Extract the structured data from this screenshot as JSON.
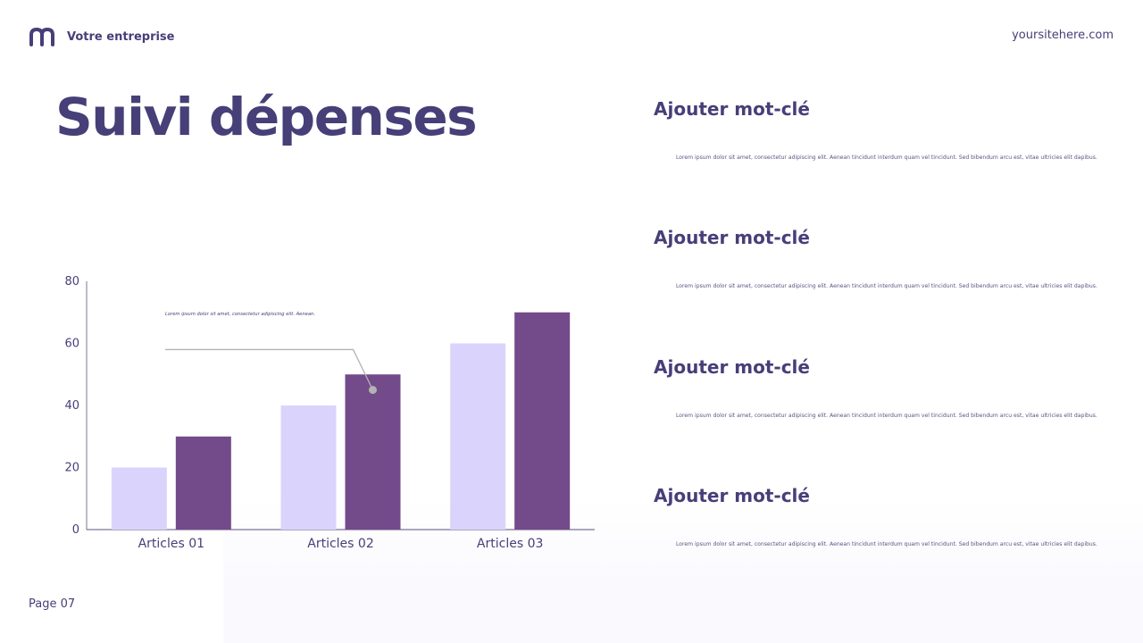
{
  "header": {
    "brand_name": "Votre entreprise",
    "site_url": "yoursitehere.com",
    "logo_icon": "m-logo-icon"
  },
  "title": "Suivi dépenses",
  "page_label": "Page 07",
  "keywords": [
    {
      "title": "Ajouter mot-clé",
      "text": "Lorem ipsum dolor sit amet, consectetur adipiscing elit. Aenean tincidunt interdum quam vel tincidunt. Sed bibendum arcu est, vitae ultricies elit dapibus."
    },
    {
      "title": "Ajouter mot-clé",
      "text": "Lorem ipsum dolor sit amet, consectetur adipiscing elit. Aenean tincidunt interdum quam vel tincidunt. Sed bibendum arcu est, vitae ultricies elit dapibus."
    },
    {
      "title": "Ajouter mot-clé",
      "text": "Lorem ipsum dolor sit amet, consectetur adipiscing elit. Aenean tincidunt interdum quam vel tincidunt. Sed bibendum arcu est, vitae ultricies elit dapibus."
    },
    {
      "title": "Ajouter mot-clé",
      "text": "Lorem ipsum dolor sit amet, consectetur adipiscing elit. Aenean tincidunt interdum quam vel tincidunt. Sed bibendum arcu est, vitae ultricies elit dapibus."
    }
  ],
  "colors": {
    "text": "#463f78",
    "series_light": "#dad4fc",
    "series_dark": "#734a8a",
    "axis": "#7d7399",
    "callout": "#b3b3b3"
  },
  "chart_data": {
    "type": "bar",
    "categories": [
      "Articles 01",
      "Articles 02",
      "Articles 03"
    ],
    "series": [
      {
        "values": [
          20,
          40,
          60
        ]
      },
      {
        "values": [
          30,
          50,
          70
        ]
      }
    ],
    "ylim": [
      0,
      80
    ],
    "yticks": [
      0,
      20,
      40,
      60,
      80
    ],
    "grid": false,
    "annotation": {
      "text": "Lorem ipsum dolor sit amet, consectetur adipiscing elit. Aenean.",
      "category": "Articles 02",
      "series_index": 1,
      "value": 45
    }
  }
}
